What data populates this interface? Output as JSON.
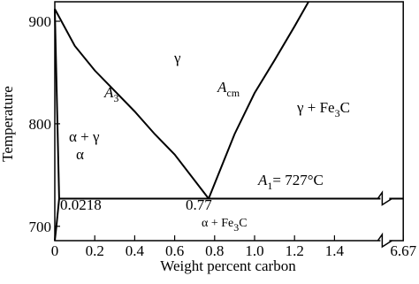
{
  "chart_data": {
    "type": "line",
    "x_label": "Weight percent carbon",
    "y_label": "Temperature",
    "xlim": [
      0,
      6.67
    ],
    "xbreak": [
      1.63,
      6.6
    ],
    "ylim": [
      686,
      919
    ],
    "xticks": [
      0,
      0.2,
      0.4,
      0.6,
      0.8,
      {
        "value": 1,
        "label": "1.0"
      },
      1.2,
      1.4,
      6.67
    ],
    "yticks": [
      700,
      800,
      900
    ],
    "color": "#000000",
    "series": [
      {
        "x": [
          0,
          0.1,
          0.2,
          0.3,
          0.4,
          0.5,
          0.6,
          0.77
        ],
        "values": [
          912,
          876,
          852,
          832,
          812,
          790,
          770,
          727
        ]
      },
      {
        "x": [
          0.77,
          0.9,
          1.0,
          1.1,
          1.2,
          1.27
        ],
        "values": [
          727,
          790,
          830,
          862,
          895,
          919
        ]
      },
      {
        "x": [
          0,
          0.0218
        ],
        "values": [
          912,
          727
        ]
      },
      {
        "x": [
          0.0218,
          0.008,
          0
        ],
        "values": [
          727,
          700,
          686
        ]
      },
      {
        "x": [
          0.0218,
          6.67
        ],
        "values": [
          727,
          727
        ]
      }
    ],
    "annotations": [
      {
        "text": "γ"
      },
      {
        "text": "A",
        "sub": "3"
      },
      {
        "text": "A",
        "sub": "cm"
      },
      {
        "text": "γ + Fe",
        "sub": "3",
        "tail": "C"
      },
      {
        "text": "α + γ"
      },
      {
        "text": "α"
      },
      {
        "text": "A",
        "sub": "1",
        "tail": "= 727°C"
      },
      {
        "text": "0.0218"
      },
      {
        "text": "0.77"
      },
      {
        "text": "α + Fe",
        "sub": "3",
        "tail": "C"
      }
    ]
  }
}
